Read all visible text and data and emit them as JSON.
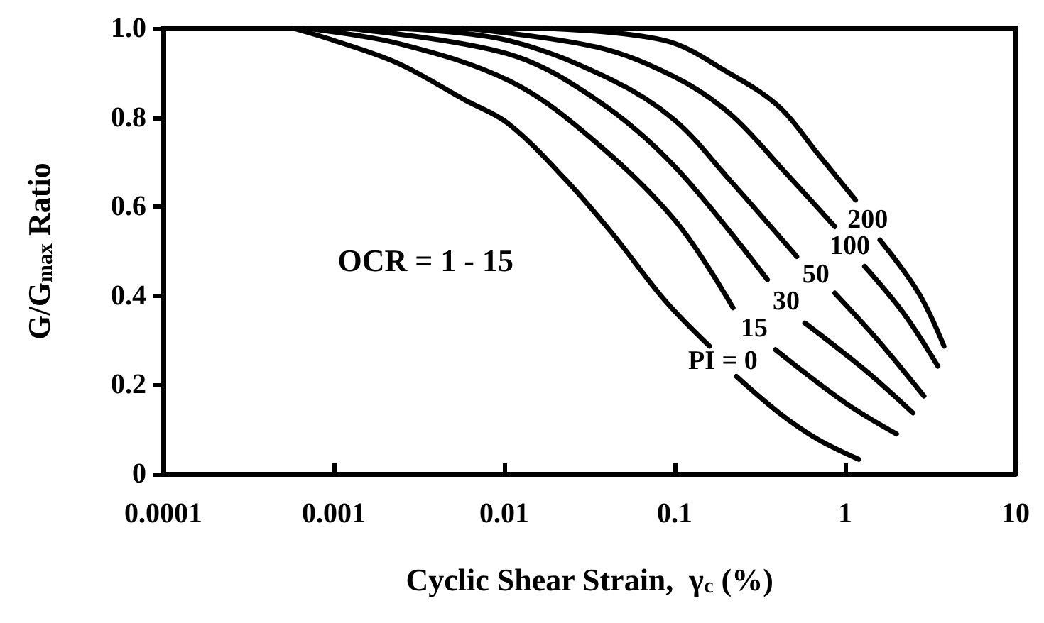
{
  "chart_data": {
    "type": "line",
    "xlabel": "Cyclic Shear Strain,  γ$_{c}$ (%)",
    "ylabel": "G/G$_{max}$ Ratio",
    "log": "x",
    "grid": false,
    "legend": false,
    "marker": "none",
    "line_style": "solid",
    "xlim": [
      0.0001,
      10
    ],
    "xticks": [
      0.0001,
      0.001,
      0.01,
      0.1,
      1,
      10
    ],
    "ylim": [
      0,
      1
    ],
    "yticks": [
      0,
      {
        "value": 0.2,
        "label": "0.2"
      },
      {
        "value": 0.4,
        "label": "0.4"
      },
      {
        "value": 0.6,
        "label": "0.6"
      },
      {
        "value": 0.8,
        "label": "0.8"
      },
      {
        "value": 1,
        "label": "1.0"
      }
    ],
    "annotations": [
      "OCR = 1 - 15"
    ],
    "series": [
      {
        "name": "PI = 0",
        "color": "#000000",
        "x": [
          0.00058,
          0.001,
          0.0024,
          0.0059,
          0.0105,
          0.023,
          0.043,
          0.087,
          0.16,
          null,
          0.23,
          0.41,
          0.69,
          1.2
        ],
        "values": [
          1.0,
          0.973,
          0.921,
          0.839,
          0.787,
          0.66,
          0.54,
          0.391,
          0.287,
          null,
          0.219,
          0.137,
          0.078,
          0.033
        ]
      },
      {
        "name": "15",
        "color": "#000000",
        "x": [
          0.00069,
          0.0024,
          0.0105,
          0.03,
          0.1,
          0.22,
          null,
          0.39,
          1.0,
          2.0
        ],
        "values": [
          1.0,
          0.966,
          0.884,
          0.764,
          0.57,
          0.373,
          null,
          0.279,
          0.16,
          0.09
        ]
      },
      {
        "name": "30",
        "color": "#000000",
        "x": [
          0.0012,
          0.0105,
          0.035,
          0.1,
          0.35,
          null,
          0.58,
          1.3,
          2.5
        ],
        "values": [
          1.0,
          0.943,
          0.839,
          0.69,
          0.436,
          null,
          0.339,
          0.234,
          0.137
        ]
      },
      {
        "name": "50",
        "color": "#000000",
        "x": [
          0.0024,
          0.0105,
          0.043,
          0.1,
          0.21,
          0.52,
          null,
          0.87,
          1.55,
          2.9
        ],
        "values": [
          1.0,
          0.973,
          0.884,
          0.794,
          0.66,
          0.488,
          null,
          0.406,
          0.301,
          0.175
        ]
      },
      {
        "name": "100",
        "color": "#000000",
        "x": [
          0.0059,
          0.035,
          0.1,
          0.21,
          0.45,
          0.87,
          null,
          1.3,
          2.2,
          3.5
        ],
        "values": [
          1.0,
          0.958,
          0.891,
          0.809,
          0.675,
          0.555,
          null,
          0.466,
          0.361,
          0.242
        ]
      },
      {
        "name": "200",
        "color": "#000000",
        "x": [
          0.017,
          0.087,
          0.21,
          0.41,
          0.69,
          1.15,
          null,
          1.6,
          2.7,
          3.8
        ],
        "values": [
          1.0,
          0.973,
          0.899,
          0.824,
          0.719,
          0.615,
          null,
          0.525,
          0.406,
          0.287
        ]
      }
    ]
  }
}
